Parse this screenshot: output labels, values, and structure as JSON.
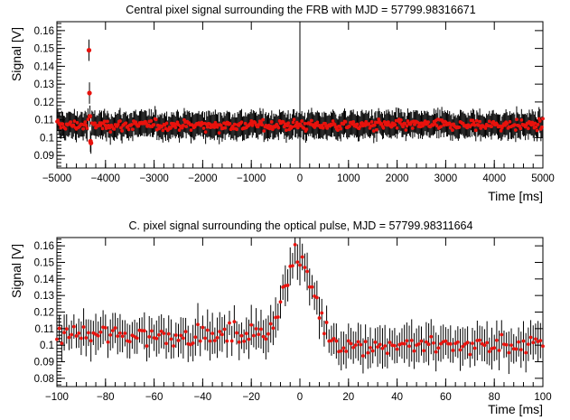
{
  "chart_data": [
    {
      "type": "scatter",
      "title": "Central pixel signal surrounding the FRB with MJD = 57799.98316671",
      "xlabel": "Time [ms]",
      "ylabel": "Signal [V]",
      "xlim": [
        -5000,
        5000
      ],
      "ylim": [
        0.083,
        0.165
      ],
      "x_ticks": [
        -5000,
        -4000,
        -3000,
        -2000,
        -1000,
        0,
        1000,
        2000,
        3000,
        4000,
        5000
      ],
      "x_tick_labels": [
        "−5000",
        "−4000",
        "−3000",
        "−2000",
        "−1000",
        "0",
        "1000",
        "2000",
        "3000",
        "4000",
        "5000"
      ],
      "y_ticks": [
        0.09,
        0.1,
        0.11,
        0.12,
        0.13,
        0.14,
        0.15,
        0.16
      ],
      "y_tick_labels": [
        "0.09",
        "0.1",
        "0.11",
        "0.12",
        "0.13",
        "0.14",
        "0.15",
        "0.16"
      ],
      "vertical_line_x": 0,
      "baseline": 0.107,
      "baseline_noise": 0.0015,
      "error_bar": 0.0065,
      "x_step": 20,
      "points": [
        {
          "x": -4340,
          "y": 0.149,
          "err": 0.006
        },
        {
          "x": -4330,
          "y": 0.125,
          "err": 0.006
        },
        {
          "x": -4320,
          "y": 0.112,
          "err": 0.006
        },
        {
          "x": -4310,
          "y": 0.098,
          "err": 0.006
        },
        {
          "x": -4300,
          "y": 0.097,
          "err": 0.006
        }
      ],
      "marker_color": "#e8120d",
      "error_color": "#000000",
      "grid": false
    },
    {
      "type": "scatter",
      "title": "C. pixel signal surrounding the optical pulse, MJD = 57799.98311664",
      "xlabel": "Time [ms]",
      "ylabel": "Signal [V]",
      "xlim": [
        -100,
        100
      ],
      "ylim": [
        0.075,
        0.165
      ],
      "x_ticks": [
        -100,
        -80,
        -60,
        -40,
        -20,
        0,
        20,
        40,
        60,
        80,
        100
      ],
      "x_tick_labels": [
        "−100",
        "−80",
        "−60",
        "−40",
        "−20",
        "0",
        "20",
        "40",
        "60",
        "80",
        "100"
      ],
      "y_ticks": [
        0.08,
        0.09,
        0.1,
        0.11,
        0.12,
        0.13,
        0.14,
        0.15,
        0.16
      ],
      "y_tick_labels": [
        "0.08",
        "0.09",
        "0.1",
        "0.11",
        "0.12",
        "0.13",
        "0.14",
        "0.15",
        "0.16"
      ],
      "x_step": 1,
      "baseline_before": 0.106,
      "baseline_after": 0.1,
      "peak": 0.155,
      "peak_x": 0,
      "peak_sigma": 6,
      "noise": 0.003,
      "error_bar": 0.01,
      "marker_color": "#e8120d",
      "error_color": "#000000",
      "grid": false
    }
  ]
}
